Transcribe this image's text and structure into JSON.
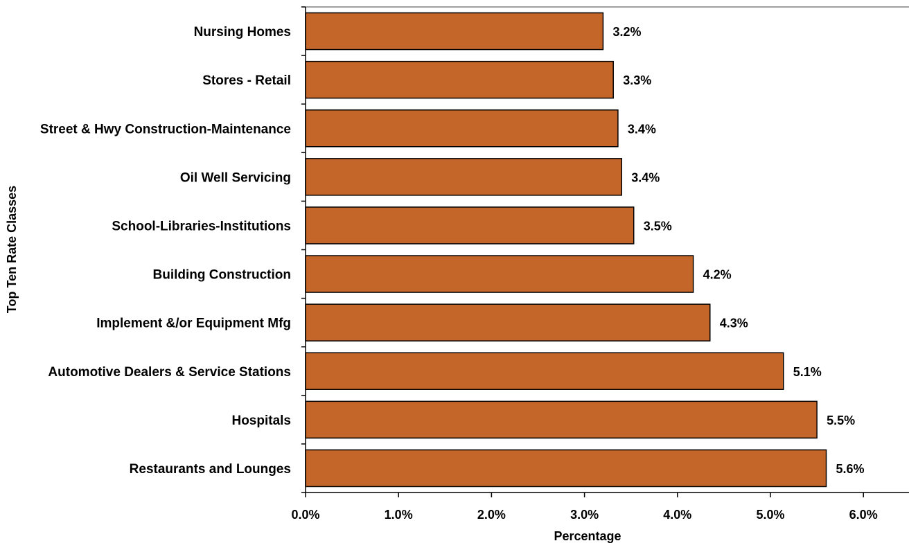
{
  "chart_data": {
    "type": "bar",
    "orientation": "horizontal",
    "categories": [
      "Nursing Homes",
      "Stores - Retail",
      "Street & Hwy Construction-Maintenance",
      "Oil Well Servicing",
      "School-Libraries-Institutions",
      "Building Construction",
      "Implement &/or Equipment Mfg",
      "Automotive Dealers & Service Stations",
      "Hospitals",
      "Restaurants and Lounges"
    ],
    "values": [
      3.2,
      3.31,
      3.36,
      3.4,
      3.53,
      4.17,
      4.35,
      5.14,
      5.5,
      5.6
    ],
    "data_labels": [
      "3.2%",
      "3.3%",
      "3.4%",
      "3.4%",
      "3.5%",
      "4.2%",
      "4.3%",
      "5.1%",
      "5.5%",
      "5.6%"
    ],
    "x_ticks": [
      0,
      1,
      2,
      3,
      4,
      5,
      6
    ],
    "x_tick_labels": [
      "0.0%",
      "1.0%",
      "2.0%",
      "3.0%",
      "4.0%",
      "5.0%",
      "6.0%"
    ],
    "xlim": [
      0,
      6.5
    ],
    "xlabel": "Percentage",
    "ylabel": "Top Ten Rate Classes",
    "title": "",
    "grid": false,
    "bar_color": "#C4662A",
    "bar_edge_color": "#000000"
  }
}
